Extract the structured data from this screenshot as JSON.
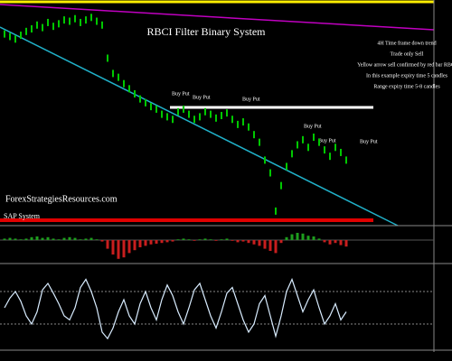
{
  "chart_data": [
    {
      "type": "price",
      "title": "RBCI Filter Binary System",
      "notes": [
        "4H Time frame down trend",
        "Trade only Sell",
        "Yellow arrow sell confirmed by red bar RBCI",
        "In this example expiry time 5 candles",
        "Range expiry time 5-8 candles"
      ],
      "watermark": "ForexStrategiesResources.com",
      "system_label": "SAP System",
      "signals": [
        "Buy Put",
        "Buy Put",
        "Buy Put",
        "Buy Put",
        "Buy Put",
        "Buy Put"
      ],
      "color": "#00c800",
      "ylim": [
        1.353,
        1.37
      ],
      "values": [
        1.3679,
        1.3677,
        1.3675,
        1.3678,
        1.3681,
        1.3683,
        1.3686,
        1.3684,
        1.3688,
        1.3685,
        1.3687,
        1.369,
        1.3689,
        1.3691,
        1.3688,
        1.369,
        1.3692,
        1.3689,
        1.3686,
        1.366,
        1.3648,
        1.3645,
        1.364,
        1.3636,
        1.3632,
        1.3628,
        1.3625,
        1.3622,
        1.362,
        1.3616,
        1.3614,
        1.3612,
        1.3618,
        1.362,
        1.3616,
        1.3612,
        1.3614,
        1.3618,
        1.3616,
        1.3613,
        1.3615,
        1.3617,
        1.3612,
        1.3608,
        1.361,
        1.3606,
        1.36,
        1.3594,
        1.358,
        1.357,
        1.354,
        1.356,
        1.3575,
        1.3585,
        1.3592,
        1.3596,
        1.359,
        1.3598,
        1.3594,
        1.3588,
        1.3583,
        1.359,
        1.3586,
        1.358
      ]
    },
    {
      "type": "histogram",
      "up_color": "#1e9e1e",
      "down_color": "#c81e1e",
      "ylim": [
        -0.003,
        0.0015
      ],
      "values": [
        0.0002,
        0.0003,
        0.0002,
        0.0001,
        0.0002,
        0.0004,
        0.0005,
        0.0003,
        0.0004,
        0.0002,
        0.0001,
        0.0003,
        0.0004,
        0.0003,
        0.0001,
        0.0002,
        0.0003,
        0.0001,
        -0.0002,
        -0.0012,
        -0.002,
        -0.0026,
        -0.0024,
        -0.0018,
        -0.0014,
        -0.001,
        -0.0008,
        -0.0006,
        -0.0005,
        -0.0004,
        -0.0003,
        -0.0002,
        0.0001,
        0.0002,
        0.0001,
        -0.0001,
        0.0001,
        0.0002,
        0.0001,
        -0.0001,
        0.0001,
        0.0002,
        -0.0001,
        -0.0003,
        -0.0002,
        -0.0004,
        -0.0006,
        -0.0008,
        -0.0012,
        -0.0015,
        -0.0018,
        -0.0004,
        0.0004,
        0.0008,
        0.001,
        0.0009,
        0.0006,
        0.0005,
        0.0002,
        -0.0003,
        -0.0006,
        -0.0004,
        -0.0007,
        -0.0009
      ]
    },
    {
      "type": "line",
      "color": "#d8ecff",
      "ylim": [
        0,
        100
      ],
      "levels": [
        30,
        70
      ],
      "values": [
        50,
        62,
        70,
        58,
        40,
        30,
        45,
        72,
        80,
        68,
        55,
        40,
        35,
        50,
        75,
        85,
        70,
        50,
        20,
        12,
        25,
        45,
        60,
        40,
        30,
        55,
        70,
        50,
        35,
        60,
        78,
        65,
        45,
        30,
        50,
        72,
        80,
        60,
        40,
        25,
        45,
        68,
        75,
        55,
        35,
        20,
        30,
        55,
        65,
        40,
        15,
        40,
        70,
        85,
        65,
        45,
        60,
        72,
        50,
        30,
        40,
        55,
        35,
        45
      ]
    }
  ]
}
